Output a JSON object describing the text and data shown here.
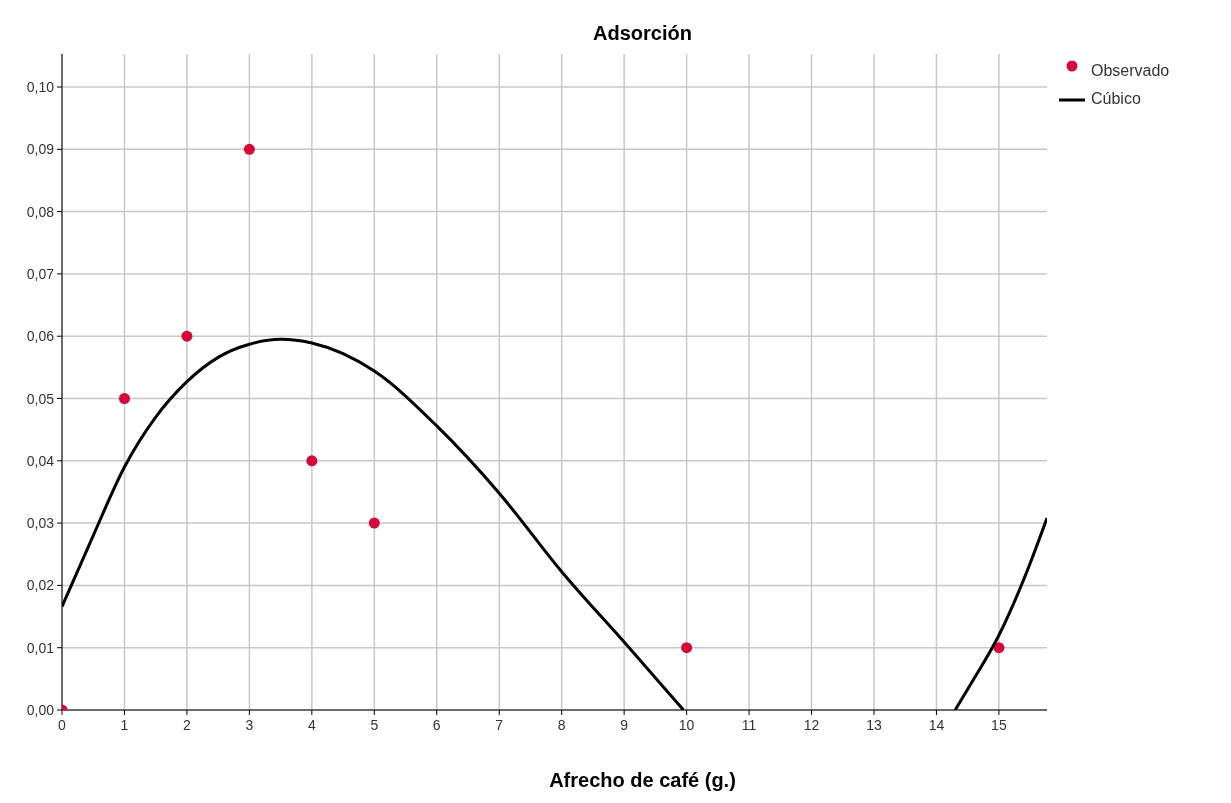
{
  "chart_data": {
    "type": "scatter",
    "title": "Adsorción",
    "xlabel": "Afrecho de café (g.)",
    "xlim": [
      0,
      15.77
    ],
    "ylim": [
      0,
      0.1053
    ],
    "xticks": [
      0,
      1,
      2,
      3,
      4,
      5,
      6,
      7,
      8,
      9,
      10,
      11,
      12,
      13,
      14,
      15
    ],
    "yticks": [
      {
        "value": 0,
        "label": "0,00"
      },
      {
        "value": 0.01,
        "label": "0,01"
      },
      {
        "value": 0.02,
        "label": "0,02"
      },
      {
        "value": 0.03,
        "label": "0,03"
      },
      {
        "value": 0.04,
        "label": "0,04"
      },
      {
        "value": 0.05,
        "label": "0,05"
      },
      {
        "value": 0.06,
        "label": "0,06"
      },
      {
        "value": 0.07,
        "label": "0,07"
      },
      {
        "value": 0.08,
        "label": "0,08"
      },
      {
        "value": 0.09,
        "label": "0,09"
      },
      {
        "value": 0.1,
        "label": "0,10"
      }
    ],
    "grid": true,
    "legend": "top right",
    "series": [
      {
        "name": "Observado",
        "marker": "circle",
        "color": "#d6083b",
        "x": [
          0,
          1,
          2,
          3,
          4,
          5,
          10,
          15
        ],
        "values": [
          0,
          0.05,
          0.06,
          0.09,
          0.04,
          0.03,
          0.01,
          0.01
        ]
      },
      {
        "name": "Cúbico",
        "type": "line",
        "marker": "none",
        "line_style": "solid",
        "color": "#000000",
        "x": [
          0,
          0.5,
          1,
          1.5,
          2,
          2.5,
          3,
          3.5,
          4,
          5,
          6,
          7,
          8,
          9,
          9.95,
          12,
          14.3,
          14.6,
          15,
          15.4,
          15.77
        ],
        "values": [
          0.0166,
          0.028,
          0.039,
          0.047,
          0.0527,
          0.0566,
          0.0587,
          0.0595,
          0.0589,
          0.0544,
          0.0456,
          0.0348,
          0.0222,
          0.0109,
          0,
          null,
          0,
          0.005,
          0.012,
          0.021,
          0.0308
        ]
      }
    ]
  }
}
